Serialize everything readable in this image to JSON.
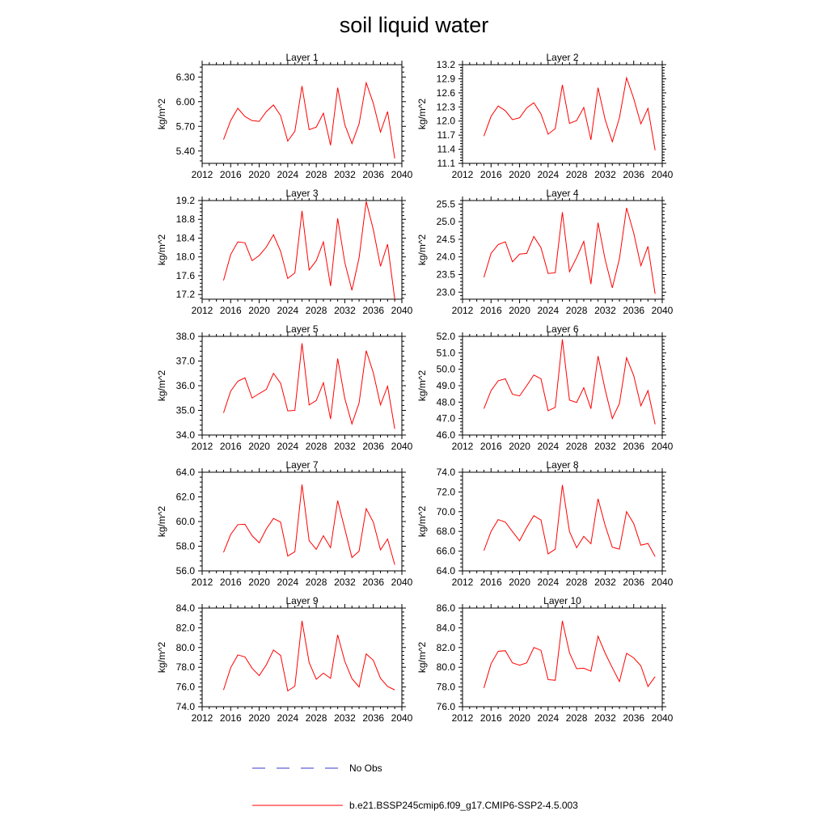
{
  "figure": {
    "title": "soil liquid water",
    "legend": [
      {
        "label": "No Obs",
        "color": "#3a3acc",
        "style": "dashed"
      },
      {
        "label": "b.e21.BSSP245cmip6.f09_g17.CMIP6-SSP2-4.5.003",
        "color": "#ff0000",
        "style": "solid"
      }
    ]
  },
  "chart_data": [
    {
      "type": "line",
      "title": "Layer 1",
      "ylabel": "kg/m^2",
      "xlim": [
        2012,
        2040
      ],
      "ylim": [
        5.25,
        6.45
      ],
      "xticks": [
        2012,
        2016,
        2020,
        2024,
        2028,
        2032,
        2036,
        2040
      ],
      "xtick_labels": [
        "2012",
        "2016",
        "2020",
        "2024",
        "2028",
        "2032",
        "2036",
        "2040"
      ],
      "yticks": [
        5.4,
        5.7,
        6.0,
        6.3
      ],
      "ytick_labels": [
        "5.40",
        "5.70",
        "6.00",
        "6.30"
      ],
      "series": [
        {
          "color": "#ff0000",
          "x": [
            2015,
            2016,
            2017,
            2018,
            2019,
            2020,
            2021,
            2022,
            2023,
            2024,
            2025,
            2026,
            2027,
            2028,
            2029,
            2030,
            2031,
            2032,
            2033,
            2034,
            2035,
            2036,
            2037,
            2038,
            2039
          ],
          "y": [
            5.54,
            5.77,
            5.92,
            5.82,
            5.77,
            5.76,
            5.88,
            5.96,
            5.83,
            5.52,
            5.64,
            6.19,
            5.66,
            5.69,
            5.86,
            5.47,
            6.17,
            5.72,
            5.49,
            5.73,
            6.23,
            5.98,
            5.63,
            5.88,
            5.31
          ]
        }
      ]
    },
    {
      "type": "line",
      "title": "Layer 2",
      "ylabel": "kg/m^2",
      "xlim": [
        2012,
        2040
      ],
      "ylim": [
        11.1,
        13.2
      ],
      "xticks": [
        2012,
        2016,
        2020,
        2024,
        2028,
        2032,
        2036,
        2040
      ],
      "xtick_labels": [
        "2012",
        "2016",
        "2020",
        "2024",
        "2028",
        "2032",
        "2036",
        "2040"
      ],
      "yticks": [
        11.1,
        11.4,
        11.7,
        12.0,
        12.3,
        12.6,
        12.9,
        13.2
      ],
      "ytick_labels": [
        "11.1",
        "11.4",
        "11.7",
        "12.0",
        "12.3",
        "12.6",
        "12.9",
        "13.2"
      ],
      "series": [
        {
          "color": "#ff0000",
          "x": [
            2015,
            2016,
            2017,
            2018,
            2019,
            2020,
            2021,
            2022,
            2023,
            2024,
            2025,
            2026,
            2027,
            2028,
            2029,
            2030,
            2031,
            2032,
            2033,
            2034,
            2035,
            2036,
            2037,
            2038,
            2039
          ],
          "y": [
            11.68,
            12.1,
            12.32,
            12.22,
            12.03,
            12.07,
            12.28,
            12.39,
            12.15,
            11.72,
            11.84,
            12.77,
            11.95,
            12.01,
            12.29,
            11.6,
            12.71,
            12.03,
            11.56,
            12.07,
            12.92,
            12.48,
            11.94,
            12.27,
            11.38
          ]
        }
      ]
    },
    {
      "type": "line",
      "title": "Layer 3",
      "ylabel": "kg/m^2",
      "xlim": [
        2012,
        2040
      ],
      "ylim": [
        17.1,
        19.2
      ],
      "xticks": [
        2012,
        2016,
        2020,
        2024,
        2028,
        2032,
        2036,
        2040
      ],
      "xtick_labels": [
        "2012",
        "2016",
        "2020",
        "2024",
        "2028",
        "2032",
        "2036",
        "2040"
      ],
      "yticks": [
        17.2,
        17.6,
        18.0,
        18.4,
        18.8,
        19.2
      ],
      "ytick_labels": [
        "17.2",
        "17.6",
        "18.0",
        "18.4",
        "18.8",
        "19.2"
      ],
      "series": [
        {
          "color": "#ff0000",
          "x": [
            2015,
            2016,
            2017,
            2018,
            2019,
            2020,
            2021,
            2022,
            2023,
            2024,
            2025,
            2026,
            2027,
            2028,
            2029,
            2030,
            2031,
            2032,
            2033,
            2034,
            2035,
            2036,
            2037,
            2038,
            2039
          ],
          "y": [
            17.5,
            18.05,
            18.32,
            18.3,
            17.92,
            18.03,
            18.21,
            18.47,
            18.12,
            17.54,
            17.66,
            18.98,
            17.72,
            17.92,
            18.32,
            17.38,
            18.82,
            17.88,
            17.29,
            17.98,
            19.18,
            18.58,
            17.8,
            18.27,
            17.1
          ]
        }
      ]
    },
    {
      "type": "line",
      "title": "Layer 4",
      "ylabel": "kg/m^2",
      "xlim": [
        2012,
        2040
      ],
      "ylim": [
        22.8,
        25.6
      ],
      "xticks": [
        2012,
        2016,
        2020,
        2024,
        2028,
        2032,
        2036,
        2040
      ],
      "xtick_labels": [
        "2012",
        "2016",
        "2020",
        "2024",
        "2028",
        "2032",
        "2036",
        "2040"
      ],
      "yticks": [
        23.0,
        23.5,
        24.0,
        24.5,
        25.0,
        25.5
      ],
      "ytick_labels": [
        "23.0",
        "23.5",
        "24.0",
        "24.5",
        "25.0",
        "25.5"
      ],
      "series": [
        {
          "color": "#ff0000",
          "x": [
            2015,
            2016,
            2017,
            2018,
            2019,
            2020,
            2021,
            2022,
            2023,
            2024,
            2025,
            2026,
            2027,
            2028,
            2029,
            2030,
            2031,
            2032,
            2033,
            2034,
            2035,
            2036,
            2037,
            2038,
            2039
          ],
          "y": [
            23.42,
            24.1,
            24.35,
            24.43,
            23.86,
            24.08,
            24.1,
            24.58,
            24.26,
            23.53,
            23.55,
            25.27,
            23.58,
            23.98,
            24.44,
            23.23,
            24.97,
            23.92,
            23.12,
            23.95,
            25.39,
            24.68,
            23.75,
            24.3,
            22.95
          ]
        }
      ]
    },
    {
      "type": "line",
      "title": "Layer 5",
      "ylabel": "kg/m^2",
      "xlim": [
        2012,
        2040
      ],
      "ylim": [
        34.0,
        38.0
      ],
      "xticks": [
        2012,
        2016,
        2020,
        2024,
        2028,
        2032,
        2036,
        2040
      ],
      "xtick_labels": [
        "2012",
        "2016",
        "2020",
        "2024",
        "2028",
        "2032",
        "2036",
        "2040"
      ],
      "yticks": [
        34.0,
        35.0,
        36.0,
        37.0,
        38.0
      ],
      "ytick_labels": [
        "34.0",
        "35.0",
        "36.0",
        "37.0",
        "38.0"
      ],
      "series": [
        {
          "color": "#ff0000",
          "x": [
            2015,
            2016,
            2017,
            2018,
            2019,
            2020,
            2021,
            2022,
            2023,
            2024,
            2025,
            2026,
            2027,
            2028,
            2029,
            2030,
            2031,
            2032,
            2033,
            2034,
            2035,
            2036,
            2037,
            2038,
            2039
          ],
          "y": [
            34.9,
            35.78,
            36.18,
            36.32,
            35.5,
            35.68,
            35.85,
            36.5,
            36.1,
            34.98,
            35.0,
            37.72,
            35.22,
            35.4,
            36.12,
            34.65,
            37.1,
            35.48,
            34.45,
            35.3,
            37.42,
            36.52,
            35.22,
            35.98,
            34.25
          ]
        }
      ]
    },
    {
      "type": "line",
      "title": "Layer 6",
      "ylabel": "kg/m^2",
      "xlim": [
        2012,
        2040
      ],
      "ylim": [
        46.0,
        52.0
      ],
      "xticks": [
        2012,
        2016,
        2020,
        2024,
        2028,
        2032,
        2036,
        2040
      ],
      "xtick_labels": [
        "2012",
        "2016",
        "2020",
        "2024",
        "2028",
        "2032",
        "2036",
        "2040"
      ],
      "yticks": [
        46.0,
        47.0,
        48.0,
        49.0,
        50.0,
        51.0,
        52.0
      ],
      "ytick_labels": [
        "46.0",
        "47.0",
        "48.0",
        "49.0",
        "50.0",
        "51.0",
        "52.0"
      ],
      "series": [
        {
          "color": "#ff0000",
          "x": [
            2015,
            2016,
            2017,
            2018,
            2019,
            2020,
            2021,
            2022,
            2023,
            2024,
            2025,
            2026,
            2027,
            2028,
            2029,
            2030,
            2031,
            2032,
            2033,
            2034,
            2035,
            2036,
            2037,
            2038,
            2039
          ],
          "y": [
            47.6,
            48.7,
            49.3,
            49.42,
            48.48,
            48.38,
            49.0,
            49.65,
            49.42,
            47.48,
            47.68,
            51.82,
            48.12,
            47.98,
            48.88,
            47.6,
            50.8,
            48.75,
            47.0,
            47.92,
            50.7,
            49.62,
            47.78,
            48.7,
            46.65
          ]
        }
      ]
    },
    {
      "type": "line",
      "title": "Layer 7",
      "ylabel": "kg/m^2",
      "xlim": [
        2012,
        2040
      ],
      "ylim": [
        56.0,
        64.0
      ],
      "xticks": [
        2012,
        2016,
        2020,
        2024,
        2028,
        2032,
        2036,
        2040
      ],
      "xtick_labels": [
        "2012",
        "2016",
        "2020",
        "2024",
        "2028",
        "2032",
        "2036",
        "2040"
      ],
      "yticks": [
        56.0,
        58.0,
        60.0,
        62.0,
        64.0
      ],
      "ytick_labels": [
        "56.0",
        "58.0",
        "60.0",
        "62.0",
        "64.0"
      ],
      "series": [
        {
          "color": "#ff0000",
          "x": [
            2015,
            2016,
            2017,
            2018,
            2019,
            2020,
            2021,
            2022,
            2023,
            2024,
            2025,
            2026,
            2027,
            2028,
            2029,
            2030,
            2031,
            2032,
            2033,
            2034,
            2035,
            2036,
            2037,
            2038,
            2039
          ],
          "y": [
            57.5,
            58.95,
            59.75,
            59.78,
            58.85,
            58.28,
            59.4,
            60.25,
            59.95,
            57.2,
            57.55,
            63.0,
            58.45,
            57.75,
            58.85,
            57.88,
            61.7,
            59.4,
            57.08,
            57.6,
            61.05,
            59.95,
            57.7,
            58.58,
            56.5
          ]
        }
      ]
    },
    {
      "type": "line",
      "title": "Layer 8",
      "ylabel": "kg/m^2",
      "xlim": [
        2012,
        2040
      ],
      "ylim": [
        64.0,
        74.0
      ],
      "xticks": [
        2012,
        2016,
        2020,
        2024,
        2028,
        2032,
        2036,
        2040
      ],
      "xtick_labels": [
        "2012",
        "2016",
        "2020",
        "2024",
        "2028",
        "2032",
        "2036",
        "2040"
      ],
      "yticks": [
        64.0,
        66.0,
        68.0,
        70.0,
        72.0,
        74.0
      ],
      "ytick_labels": [
        "64.0",
        "66.0",
        "68.0",
        "70.0",
        "72.0",
        "74.0"
      ],
      "series": [
        {
          "color": "#ff0000",
          "x": [
            2015,
            2016,
            2017,
            2018,
            2019,
            2020,
            2021,
            2022,
            2023,
            2024,
            2025,
            2026,
            2027,
            2028,
            2029,
            2030,
            2031,
            2032,
            2033,
            2034,
            2035,
            2036,
            2037,
            2038,
            2039
          ],
          "y": [
            66.05,
            68.0,
            69.2,
            68.95,
            67.98,
            67.05,
            68.42,
            69.6,
            69.15,
            65.72,
            66.2,
            72.7,
            67.98,
            66.35,
            67.5,
            66.75,
            71.3,
            68.6,
            66.4,
            66.2,
            70.0,
            68.8,
            66.6,
            66.78,
            65.45
          ]
        }
      ]
    },
    {
      "type": "line",
      "title": "Layer 9",
      "ylabel": "kg/m^2",
      "xlim": [
        2012,
        2040
      ],
      "ylim": [
        74.0,
        84.0
      ],
      "xticks": [
        2012,
        2016,
        2020,
        2024,
        2028,
        2032,
        2036,
        2040
      ],
      "xtick_labels": [
        "2012",
        "2016",
        "2020",
        "2024",
        "2028",
        "2032",
        "2036",
        "2040"
      ],
      "yticks": [
        74.0,
        76.0,
        78.0,
        80.0,
        82.0,
        84.0
      ],
      "ytick_labels": [
        "74.0",
        "76.0",
        "78.0",
        "80.0",
        "82.0",
        "84.0"
      ],
      "series": [
        {
          "color": "#ff0000",
          "x": [
            2015,
            2016,
            2017,
            2018,
            2019,
            2020,
            2021,
            2022,
            2023,
            2024,
            2025,
            2026,
            2027,
            2028,
            2029,
            2030,
            2031,
            2032,
            2033,
            2034,
            2035,
            2036,
            2037,
            2038,
            2039
          ],
          "y": [
            75.7,
            77.95,
            79.25,
            79.05,
            77.9,
            77.15,
            78.25,
            79.75,
            79.2,
            75.6,
            76.08,
            82.7,
            78.48,
            76.78,
            77.4,
            76.88,
            81.28,
            78.6,
            76.85,
            76.0,
            79.35,
            78.7,
            76.88,
            76.05,
            75.7
          ]
        }
      ]
    },
    {
      "type": "line",
      "title": "Layer 10",
      "ylabel": "kg/m^2",
      "xlim": [
        2012,
        2040
      ],
      "ylim": [
        76.0,
        86.0
      ],
      "xticks": [
        2012,
        2016,
        2020,
        2024,
        2028,
        2032,
        2036,
        2040
      ],
      "xtick_labels": [
        "2012",
        "2016",
        "2020",
        "2024",
        "2028",
        "2032",
        "2036",
        "2040"
      ],
      "yticks": [
        76.0,
        78.0,
        80.0,
        82.0,
        84.0,
        86.0
      ],
      "ytick_labels": [
        "76.0",
        "78.0",
        "80.0",
        "82.0",
        "84.0",
        "86.0"
      ],
      "series": [
        {
          "color": "#ff0000",
          "x": [
            2015,
            2016,
            2017,
            2018,
            2019,
            2020,
            2021,
            2022,
            2023,
            2024,
            2025,
            2026,
            2027,
            2028,
            2029,
            2030,
            2031,
            2032,
            2033,
            2034,
            2035,
            2036,
            2037,
            2038,
            2039
          ],
          "y": [
            77.9,
            80.35,
            81.62,
            81.68,
            80.45,
            80.2,
            80.45,
            82.0,
            81.72,
            78.75,
            78.68,
            84.7,
            81.45,
            79.85,
            79.9,
            79.6,
            83.15,
            81.42,
            79.95,
            78.55,
            81.42,
            80.95,
            80.15,
            78.05,
            79.05
          ]
        }
      ]
    }
  ]
}
